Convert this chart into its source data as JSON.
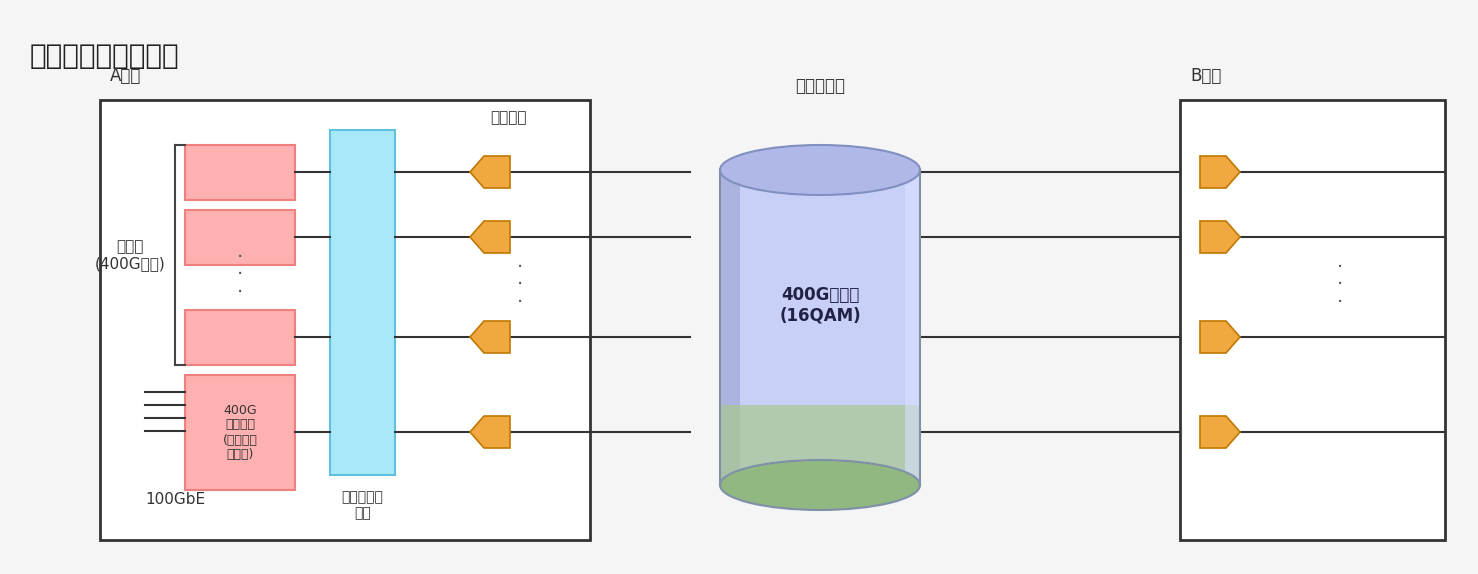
{
  "title": "＜実験のイメージ＞",
  "bg_color": "#f5f5f5",
  "box_color": "#ffffff",
  "box_edge": "#333333",
  "pink_box_face": "#f08080",
  "pink_box_edge": "#c04040",
  "pink_box_light": "#ffb0b0",
  "cyan_box_face": "#a8e8f8",
  "cyan_box_edge": "#60c0e0",
  "arrow_face": "#f0a840",
  "arrow_edge": "#c07800",
  "cylinder_top": "#b0b8e8",
  "cylinder_body": "#c8d0f0",
  "cylinder_bottom": "#a0c890",
  "label_a": "Aビル",
  "label_b": "Bビル",
  "label_trans": "敷設伝送路",
  "label_amp": "光増幅器",
  "label_400g": "400G光信号\n(16QAM)",
  "label_bg": "背景光\n(400G変調)",
  "label_100g": "100GbE",
  "label_wave": "波長合分波\n装置",
  "label_trans_box": "400G\n送受信機\n(トランス\nポンダ)"
}
